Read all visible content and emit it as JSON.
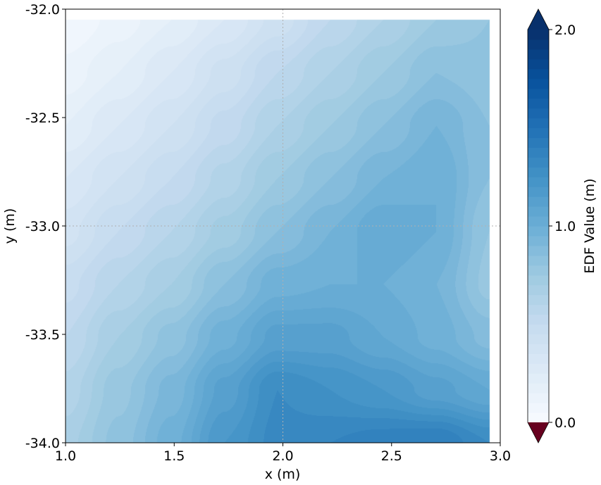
{
  "chart_data": {
    "type": "heatmap",
    "subtype": "filled-contour",
    "title": "",
    "xlabel": "x (m)",
    "ylabel": "y (m)",
    "xlim": [
      1.0,
      3.0
    ],
    "ylim": [
      -34.0,
      -32.0
    ],
    "xticks": [
      "1.0",
      "1.5",
      "2.0",
      "2.5",
      "3.0"
    ],
    "yticks": [
      "-32.0",
      "-32.5",
      "-33.0",
      "-33.5",
      "-34.0"
    ],
    "grid": "dotted lines at x=2.0 and y=-33.0",
    "colormap": "Blues",
    "under_color": "#67001f",
    "colorbar": {
      "label": "EDF Value (m)",
      "range": [
        0.0,
        2.0
      ],
      "ticks": [
        "0.0",
        "1.0",
        "2.0"
      ],
      "level_step": 0.05,
      "extend": "both"
    },
    "grid_x": [
      1.0,
      1.244,
      1.4875,
      1.731,
      1.975,
      2.219,
      2.4625,
      2.706,
      2.95
    ],
    "grid_y": [
      -32.05,
      -32.294,
      -32.5375,
      -32.781,
      -33.025,
      -33.269,
      -33.5125,
      -33.756,
      -34.0
    ],
    "values": [
      [
        0.05,
        0.12,
        0.2,
        0.3,
        0.42,
        0.55,
        0.65,
        0.75,
        0.8
      ],
      [
        0.12,
        0.2,
        0.3,
        0.42,
        0.55,
        0.65,
        0.75,
        0.85,
        0.82
      ],
      [
        0.2,
        0.3,
        0.4,
        0.52,
        0.65,
        0.75,
        0.85,
        0.95,
        0.85
      ],
      [
        0.3,
        0.4,
        0.5,
        0.62,
        0.75,
        0.85,
        0.95,
        1.0,
        0.85
      ],
      [
        0.38,
        0.5,
        0.6,
        0.72,
        0.85,
        0.95,
        1.05,
        1.0,
        0.8
      ],
      [
        0.48,
        0.6,
        0.7,
        0.85,
        0.98,
        1.0,
        1.0,
        0.95,
        0.78
      ],
      [
        0.55,
        0.7,
        0.82,
        0.98,
        1.12,
        1.12,
        1.05,
        0.98,
        0.88
      ],
      [
        0.62,
        0.78,
        0.92,
        1.12,
        1.3,
        1.25,
        1.2,
        1.12,
        1.05
      ],
      [
        0.68,
        0.82,
        0.98,
        1.2,
        1.32,
        1.35,
        1.38,
        1.4,
        1.3
      ]
    ]
  }
}
